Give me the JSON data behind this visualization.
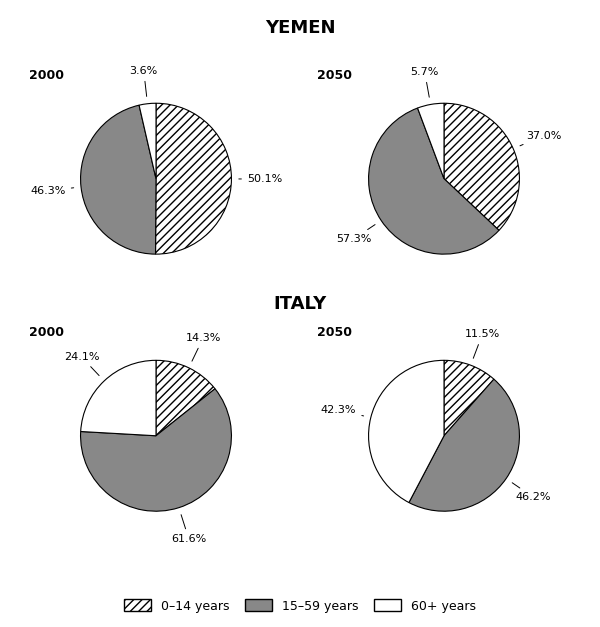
{
  "title_yemen": "YEMEN",
  "title_italy": "ITALY",
  "charts": {
    "yemen_2000": {
      "label": "2000",
      "values": [
        50.1,
        46.3,
        3.6
      ],
      "labels_pct": [
        "50.1%",
        "46.3%",
        "3.6%"
      ]
    },
    "yemen_2050": {
      "label": "2050",
      "values": [
        37.0,
        57.3,
        5.7
      ],
      "labels_pct": [
        "37.0%",
        "57.3%",
        "5.7%"
      ]
    },
    "italy_2000": {
      "label": "2000",
      "values": [
        14.3,
        61.6,
        24.1
      ],
      "labels_pct": [
        "14.3%",
        "61.6%",
        "24.1%"
      ]
    },
    "italy_2050": {
      "label": "2050",
      "values": [
        11.5,
        46.2,
        42.3
      ],
      "labels_pct": [
        "11.5%",
        "46.2%",
        "42.3%"
      ]
    }
  },
  "legend_labels": [
    "0–14 years",
    "15–59 years",
    "60+ years"
  ],
  "gray_color": "#888888",
  "hatch": "////",
  "startangle": 90,
  "background": "white"
}
